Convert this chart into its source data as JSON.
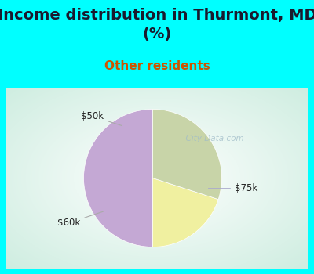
{
  "title": "Income distribution in Thurmont, MD\n(%)",
  "subtitle": "Other residents",
  "title_color": "#1a1a2e",
  "subtitle_color": "#cc5500",
  "bg_color": "#00ffff",
  "chart_bg_color": "#f0f8f4",
  "slices": [
    {
      "label": "$75k",
      "value": 50,
      "color": "#c4a8d4"
    },
    {
      "label": "$50k",
      "value": 20,
      "color": "#f0f0a0"
    },
    {
      "label": "$60k",
      "value": 30,
      "color": "#c8d4a8"
    }
  ],
  "startangle": 90,
  "watermark": "  City-Data.com",
  "figsize": [
    4.0,
    3.5
  ],
  "dpi": 100,
  "title_fontsize": 14,
  "subtitle_fontsize": 11
}
